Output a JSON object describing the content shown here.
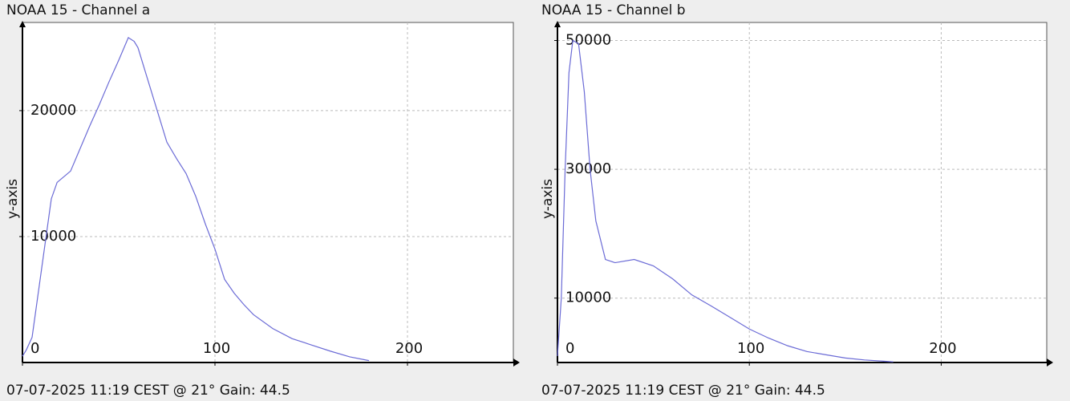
{
  "chart_data": [
    {
      "type": "line",
      "title": "NOAA 15 - Channel a",
      "y_label": "y-axis",
      "footer": "07-07-2025 11:19 CEST @ 21° Gain: 44.5",
      "x": [
        0,
        2,
        5,
        10,
        15,
        18,
        25,
        30,
        35,
        40,
        45,
        50,
        55,
        58,
        60,
        65,
        70,
        75,
        80,
        85,
        90,
        95,
        100,
        105,
        110,
        115,
        120,
        130,
        140,
        150,
        160,
        170,
        180
      ],
      "values": [
        500,
        1000,
        2000,
        7500,
        13000,
        14300,
        15200,
        17000,
        18800,
        20500,
        22300,
        24000,
        25800,
        25500,
        25000,
        22500,
        20000,
        17500,
        16200,
        15000,
        13200,
        11000,
        9000,
        6600,
        5500,
        4600,
        3800,
        2700,
        1900,
        1400,
        900,
        450,
        150
      ],
      "color": "#6b6bd6",
      "xlim": [
        0,
        255
      ],
      "ylim": [
        0,
        27000
      ],
      "xticks": [
        0,
        100,
        200
      ],
      "yticks": [
        10000,
        20000
      ],
      "grid": true
    },
    {
      "type": "line",
      "title": "NOAA 15 - Channel b",
      "y_label": "y-axis",
      "footer": "07-07-2025 11:19 CEST @ 21° Gain: 44.5",
      "x": [
        0,
        2,
        4,
        6,
        8,
        11,
        14,
        17,
        20,
        25,
        30,
        40,
        50,
        60,
        70,
        80,
        90,
        100,
        110,
        120,
        130,
        140,
        150,
        160,
        170,
        175
      ],
      "values": [
        1000,
        10000,
        30000,
        45000,
        50000,
        49500,
        42000,
        30000,
        22000,
        16000,
        15500,
        16000,
        15000,
        13000,
        10500,
        8800,
        7000,
        5200,
        3800,
        2600,
        1700,
        1200,
        700,
        400,
        200,
        100
      ],
      "color": "#6b6bd6",
      "xlim": [
        0,
        255
      ],
      "ylim": [
        0,
        52800
      ],
      "xticks": [
        0,
        100,
        200
      ],
      "yticks": [
        10000,
        30000,
        50000
      ],
      "grid": true
    }
  ]
}
